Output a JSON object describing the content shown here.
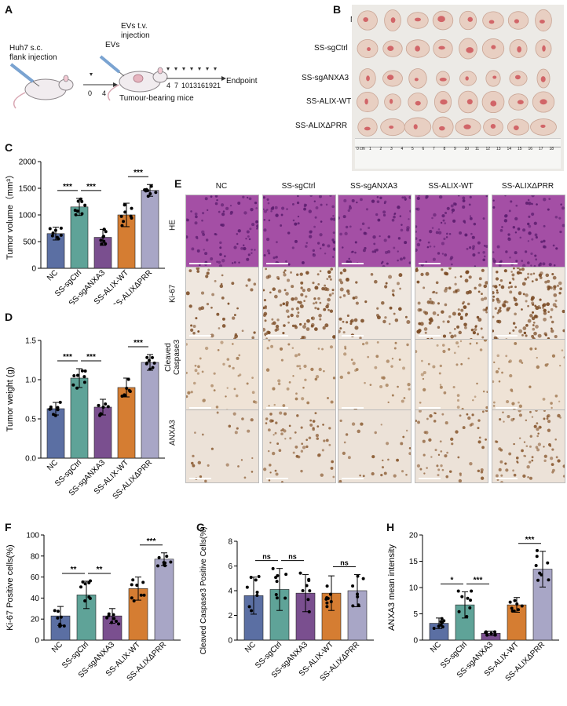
{
  "panels": {
    "A": "A",
    "B": "B",
    "C": "C",
    "D": "D",
    "E": "E",
    "F": "F",
    "G": "G",
    "H": "H"
  },
  "schematic": {
    "injection1": "Huh7 s.c.",
    "injection2": "flank injection",
    "evs_label": "EVs",
    "evs_tv1": "EVs t.v.",
    "evs_tv2": "injection",
    "mice_label": "Tumour-bearing mice",
    "endpoint": "Endpoint",
    "days_pre": [
      "0",
      "4"
    ],
    "days_post": [
      "4",
      "7",
      "10",
      "13",
      "16",
      "19",
      "21"
    ]
  },
  "photo": {
    "rows": [
      "NC",
      "SS-sgCtrl",
      "SS-sgANXA3",
      "SS-ALIX-WT",
      "SS-ALIXΔPRR"
    ],
    "ruler_start": "0 cm",
    "ruler_ticks": [
      "1",
      "2",
      "3",
      "4",
      "5",
      "6",
      "7",
      "8",
      "9",
      "10",
      "11",
      "12",
      "13",
      "14",
      "15",
      "16",
      "17",
      "18"
    ]
  },
  "groups": [
    "NC",
    "SS-sgCtrl",
    "SS-sgANXA3",
    "SS-ALIX-WT",
    "SS-ALIXΔPRR"
  ],
  "colors": {
    "NC": "#5b6fa3",
    "SS-sgCtrl": "#5fa398",
    "SS-sgANXA3": "#7a4f8f",
    "SS-ALIX-WT": "#d57d32",
    "SS-ALIXΔPRR": "#a8a6c6"
  },
  "ihc": {
    "columns": [
      "NC",
      "SS-sgCtrl",
      "SS-sgANXA3",
      "SS-ALIX-WT",
      "SS-ALIXΔPRR"
    ],
    "rows": [
      "HE",
      "Ki-67",
      "Cleaved",
      "Caspase3",
      "ANXA3"
    ]
  },
  "chart_data": [
    {
      "id": "C",
      "type": "bar",
      "categories": [
        "NC",
        "SS-sgCtrl",
        "SS-sgANXA3",
        "SS-ALIX-WT",
        "SS-ALIXΔPRR"
      ],
      "values": [
        650,
        1150,
        580,
        1000,
        1460
      ],
      "errors": [
        120,
        160,
        150,
        220,
        110
      ],
      "ylabel": "Tumor volume（mm³）",
      "ylim": [
        0,
        2000
      ],
      "yticks": [
        "0",
        "500",
        "1000",
        "1500",
        "2000"
      ],
      "sig": [
        {
          "a": 0,
          "b": 1,
          "label": "***"
        },
        {
          "a": 1,
          "b": 2,
          "label": "***"
        },
        {
          "a": 3,
          "b": 4,
          "label": "***"
        }
      ]
    },
    {
      "id": "D",
      "type": "bar",
      "categories": [
        "NC",
        "SS-sgCtrl",
        "SS-sgANXA3",
        "SS-ALIX-WT",
        "SS-ALIXΔPRR"
      ],
      "values": [
        0.63,
        1.02,
        0.65,
        0.9,
        1.22
      ],
      "errors": [
        0.08,
        0.12,
        0.1,
        0.12,
        0.1
      ],
      "ylabel": "Tumor weight (g)",
      "ylim": [
        0,
        1.5
      ],
      "yticks": [
        "0.0",
        "0.5",
        "1.0",
        "1.5"
      ],
      "sig": [
        {
          "a": 0,
          "b": 1,
          "label": "***"
        },
        {
          "a": 1,
          "b": 2,
          "label": "***"
        },
        {
          "a": 3,
          "b": 4,
          "label": "***"
        }
      ]
    },
    {
      "id": "F",
      "type": "bar",
      "categories": [
        "NC",
        "SS-sgCtrl",
        "SS-sgANXA3",
        "SS-ALIX-WT",
        "SS-ALIXΔPRR"
      ],
      "values": [
        23,
        43,
        23,
        49,
        77
      ],
      "errors": [
        9,
        13,
        7,
        11,
        6
      ],
      "ylabel": "Ki-67 Positive cells(%)",
      "ylim": [
        0,
        100
      ],
      "yticks": [
        "0",
        "20",
        "40",
        "60",
        "80",
        "100"
      ],
      "sig": [
        {
          "a": 0,
          "b": 1,
          "label": "**"
        },
        {
          "a": 1,
          "b": 2,
          "label": "**"
        },
        {
          "a": 3,
          "b": 4,
          "label": "***"
        }
      ]
    },
    {
      "id": "G",
      "type": "bar",
      "categories": [
        "NC",
        "SS-sgCtrl",
        "SS-sgANXA3",
        "SS-ALIX-WT",
        "SS-ALIXΔPRR"
      ],
      "values": [
        3.6,
        4.1,
        3.8,
        3.8,
        4.0
      ],
      "errors": [
        1.5,
        1.7,
        1.5,
        1.4,
        1.3
      ],
      "ylabel": "Cleaved Caspase3 Positive Cells(%)",
      "ylim": [
        0,
        8
      ],
      "yticks": [
        "0",
        "2",
        "4",
        "6",
        "8"
      ],
      "sig": [
        {
          "a": 0,
          "b": 1,
          "label": "ns"
        },
        {
          "a": 1,
          "b": 2,
          "label": "ns"
        },
        {
          "a": 3,
          "b": 4,
          "label": "ns"
        }
      ]
    },
    {
      "id": "H",
      "type": "bar",
      "categories": [
        "NC",
        "SS-sgCtrl",
        "SS-sgANXA3",
        "SS-ALIX-WT",
        "SS-ALIXΔPRR"
      ],
      "values": [
        3.2,
        6.7,
        1.3,
        6.7,
        13.5
      ],
      "errors": [
        1.0,
        2.5,
        0.4,
        1.4,
        3.4
      ],
      "ylabel": "ANXA3 mean intensity",
      "ylim": [
        0,
        20
      ],
      "yticks": [
        "0",
        "5",
        "10",
        "15",
        "20"
      ],
      "sig": [
        {
          "a": 0,
          "b": 1,
          "label": "*"
        },
        {
          "a": 1,
          "b": 2,
          "label": "***"
        },
        {
          "a": 3,
          "b": 4,
          "label": "***"
        }
      ]
    }
  ]
}
